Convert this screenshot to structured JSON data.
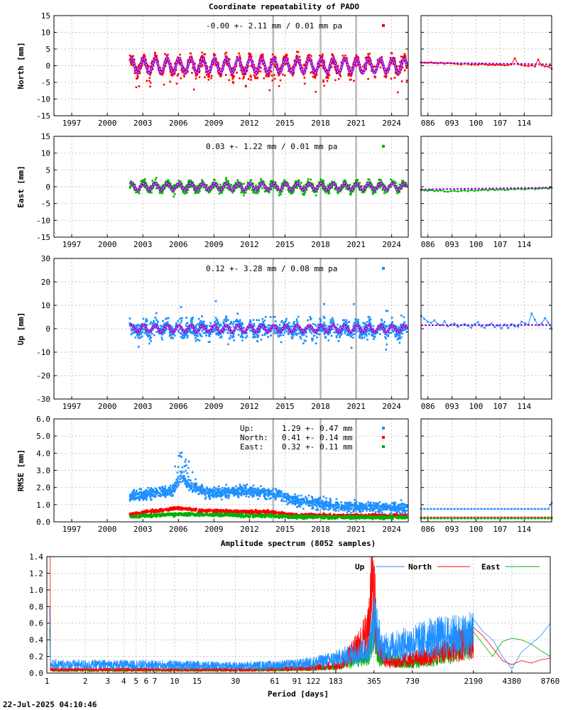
{
  "page": {
    "title": "Coordinate repeatability of PADO",
    "footer": "22-Jul-2025 04:10:46"
  },
  "colors": {
    "north": "#ff0000",
    "east": "#00b000",
    "up": "#1e90ff",
    "model": "#9400d3",
    "event": "#b8b8b8"
  },
  "chart_data": [
    {
      "type": "scatter",
      "name": "north",
      "ylabel": "North [mm]",
      "ylim": [
        -15,
        15
      ],
      "yticks": [
        -15,
        -10,
        -5,
        0,
        5,
        10,
        15
      ],
      "xlim": [
        1995.5,
        2025.4
      ],
      "xticks": [
        "1997",
        "2000",
        "2003",
        "2006",
        "2009",
        "2012",
        "2015",
        "2018",
        "2021",
        "2024"
      ],
      "xtick_values": [
        1997,
        2000,
        2003,
        2006,
        2009,
        2012,
        2015,
        2018,
        2021,
        2024
      ],
      "data_start": 2001.9,
      "data_end": 2025.3,
      "annotation": "-0.00 +- 2.11 mm /  0.01 mm pa",
      "seasonal_amplitude": 2.2,
      "scatter_std": 1.6,
      "color_key": "north",
      "event_lines": [
        2014.0,
        2018.0,
        2021.0
      ],
      "recent": {
        "xlim": [
          84,
          122
        ],
        "xticks": [
          "086",
          "093",
          "100",
          "107",
          "114"
        ],
        "xtick_values": [
          86,
          93,
          100,
          107,
          114
        ],
        "ylim": [
          -15,
          15
        ],
        "values": [
          1.0,
          0.9,
          0.9,
          1.0,
          0.8,
          0.7,
          0.9,
          0.6,
          0.8,
          0.7,
          0.6,
          0.5,
          0.4,
          0.6,
          0.5,
          0.3,
          0.4,
          0.3,
          0.5,
          0.4,
          0.2,
          0.3,
          0.2,
          0.3,
          0.2,
          0.1,
          0.2,
          0.4,
          2.2,
          0.5,
          0.2,
          0.0,
          -0.1,
          0.1,
          -0.2,
          1.8,
          0.1,
          -0.2,
          -0.3,
          -0.9
        ],
        "model": [
          0.9,
          0.4
        ]
      }
    },
    {
      "type": "scatter",
      "name": "east",
      "ylabel": "East [mm]",
      "ylim": [
        -15,
        15
      ],
      "yticks": [
        -15,
        -10,
        -5,
        0,
        5,
        10,
        15
      ],
      "xlim": [
        1995.5,
        2025.4
      ],
      "xticks": [
        "1997",
        "2000",
        "2003",
        "2006",
        "2009",
        "2012",
        "2015",
        "2018",
        "2021",
        "2024"
      ],
      "xtick_values": [
        1997,
        2000,
        2003,
        2006,
        2009,
        2012,
        2015,
        2018,
        2021,
        2024
      ],
      "data_start": 2001.9,
      "data_end": 2025.3,
      "annotation": " 0.03 +- 1.22 mm /  0.01 mm pa",
      "seasonal_amplitude": 1.0,
      "scatter_std": 1.1,
      "color_key": "east",
      "event_lines": [
        2014.0,
        2018.0,
        2021.0
      ],
      "recent": {
        "xlim": [
          84,
          122
        ],
        "xticks": [
          "086",
          "093",
          "100",
          "107",
          "114"
        ],
        "xtick_values": [
          86,
          93,
          100,
          107,
          114
        ],
        "ylim": [
          -15,
          15
        ],
        "values": [
          -1.0,
          -1.1,
          -1.2,
          -1.0,
          -1.3,
          -1.2,
          -1.1,
          -1.4,
          -1.5,
          -1.3,
          -1.2,
          -1.4,
          -1.2,
          -1.1,
          -1.3,
          -1.0,
          -1.2,
          -1.1,
          -1.0,
          -0.9,
          -1.1,
          -0.8,
          -1.0,
          -0.9,
          -0.8,
          -1.0,
          -0.9,
          -0.7,
          -0.8,
          -0.6,
          -0.7,
          -0.8,
          -0.6,
          -0.5,
          -0.7,
          -0.6,
          -0.5,
          -0.4,
          -0.6,
          -0.3
        ],
        "model": [
          -0.8,
          -0.3
        ]
      }
    },
    {
      "type": "scatter",
      "name": "up",
      "ylabel": "Up [mm]",
      "ylim": [
        -30,
        30
      ],
      "yticks": [
        -30,
        -20,
        -10,
        0,
        10,
        20,
        30
      ],
      "xlim": [
        1995.5,
        2025.4
      ],
      "xticks": [
        "1997",
        "2000",
        "2003",
        "2006",
        "2009",
        "2012",
        "2015",
        "2018",
        "2021",
        "2024"
      ],
      "xtick_values": [
        1997,
        2000,
        2003,
        2006,
        2009,
        2012,
        2015,
        2018,
        2021,
        2024
      ],
      "data_start": 2001.9,
      "data_end": 2025.3,
      "annotation": " 0.12 +- 3.28 mm /  0.08 mm pa",
      "seasonal_amplitude": 1.5,
      "scatter_std": 3.3,
      "color_key": "up",
      "event_lines": [
        2014.0,
        2018.0,
        2021.0
      ],
      "recent": {
        "xlim": [
          84,
          122
        ],
        "xticks": [
          "086",
          "093",
          "100",
          "107",
          "114"
        ],
        "xtick_values": [
          86,
          93,
          100,
          107,
          114
        ],
        "ylim": [
          -30,
          30
        ],
        "values": [
          5.5,
          4.2,
          3.0,
          2.5,
          3.6,
          2.0,
          1.5,
          3.2,
          1.0,
          1.8,
          2.2,
          0.8,
          1.5,
          2.0,
          1.2,
          0.5,
          1.9,
          2.8,
          1.0,
          0.4,
          1.6,
          2.2,
          0.7,
          1.4,
          0.2,
          1.8,
          0.3,
          2.0,
          1.0,
          0.9,
          3.0,
          2.4,
          1.7,
          6.5,
          3.8,
          1.5,
          2.2,
          4.5,
          2.6,
          0.0
        ],
        "model": [
          1.5,
          1.6
        ]
      }
    },
    {
      "type": "scatter",
      "name": "rmse",
      "ylabel": "RMSE [mm]",
      "ylim": [
        0,
        6
      ],
      "yticks": [
        "0.0",
        "1.0",
        "2.0",
        "3.0",
        "4.0",
        "5.0",
        "6.0"
      ],
      "ytick_values": [
        0,
        1,
        2,
        3,
        4,
        5,
        6
      ],
      "xlim": [
        1995.5,
        2025.4
      ],
      "xticks": [
        "1997",
        "2000",
        "2003",
        "2006",
        "2009",
        "2012",
        "2015",
        "2018",
        "2021",
        "2024"
      ],
      "xtick_values": [
        1997,
        2000,
        2003,
        2006,
        2009,
        2012,
        2015,
        2018,
        2021,
        2024
      ],
      "data_start": 2001.9,
      "data_end": 2025.3,
      "event_lines": [
        2014.0,
        2018.0,
        2021.0
      ],
      "legend": [
        {
          "label": "Up:",
          "value": "1.29 +- 0.47 mm",
          "color_key": "up"
        },
        {
          "label": "North:",
          "value": "0.41 +- 0.14 mm",
          "color_key": "north"
        },
        {
          "label": "East:",
          "value": "0.32 +- 0.11 mm",
          "color_key": "east"
        }
      ],
      "levels": {
        "up": [
          [
            2001.9,
            1.5
          ],
          [
            2005.5,
            1.8
          ],
          [
            2006.2,
            2.6
          ],
          [
            2007.0,
            2.1
          ],
          [
            2008.5,
            1.7
          ],
          [
            2012.0,
            1.8
          ],
          [
            2014.5,
            1.6
          ],
          [
            2016.0,
            1.2
          ],
          [
            2018.0,
            1.1
          ],
          [
            2019.5,
            0.9
          ],
          [
            2025.3,
            0.8
          ]
        ],
        "north": [
          [
            2001.9,
            0.45
          ],
          [
            2006.0,
            0.8
          ],
          [
            2008.0,
            0.65
          ],
          [
            2014.0,
            0.55
          ],
          [
            2016.0,
            0.4
          ],
          [
            2025.3,
            0.35
          ]
        ],
        "east": [
          [
            2001.9,
            0.3
          ],
          [
            2006.0,
            0.45
          ],
          [
            2014.0,
            0.35
          ],
          [
            2016.0,
            0.28
          ],
          [
            2025.3,
            0.25
          ]
        ]
      },
      "recent": {
        "xlim": [
          84,
          122
        ],
        "xticks": [
          "086",
          "093",
          "100",
          "107",
          "114"
        ],
        "xtick_values": [
          86,
          93,
          100,
          107,
          114
        ],
        "ylim": [
          0,
          6
        ],
        "up": 0.75,
        "north": 0.25,
        "east": 0.2,
        "up_last": 1.1
      }
    },
    {
      "type": "line",
      "name": "spectrum",
      "title": "Amplitude spectrum (8052 samples)",
      "xlabel": "Period [days]",
      "xscale": "log",
      "xlim": [
        1,
        8760
      ],
      "xticks": [
        "1",
        "2",
        "3",
        "4",
        "5",
        "6",
        "7",
        "10",
        "15",
        "30",
        "61",
        "91",
        "122",
        "183",
        "365",
        "730",
        "2190",
        "4380",
        "8760"
      ],
      "xtick_values": [
        1,
        2,
        3,
        4,
        5,
        6,
        7,
        10,
        15,
        30,
        61,
        91,
        122,
        183,
        365,
        730,
        2190,
        4380,
        8760
      ],
      "ylim": [
        0,
        1.4
      ],
      "yticks": [
        "0.0",
        "0.2",
        "0.4",
        "0.6",
        "0.8",
        "1.0",
        "1.2",
        "1.4"
      ],
      "ytick_values": [
        0,
        0.2,
        0.4,
        0.6,
        0.8,
        1.0,
        1.2,
        1.4
      ],
      "legend": [
        "Up",
        "North",
        "East"
      ],
      "series": [
        {
          "name": "Up",
          "color_key": "up",
          "x": [
            2190,
            2600,
            3100,
            3700,
            4380,
            5200,
            6200,
            7400,
            8760
          ],
          "y": [
            0.65,
            0.5,
            0.4,
            0.2,
            0.05,
            0.25,
            0.35,
            0.45,
            0.6
          ],
          "base": [
            [
              1,
              0.12
            ],
            [
              30,
              0.1
            ],
            [
              100,
              0.13
            ],
            [
              180,
              0.2
            ],
            [
              330,
              0.35
            ],
            [
              365,
              0.75
            ],
            [
              420,
              0.35
            ],
            [
              600,
              0.4
            ],
            [
              1000,
              0.5
            ],
            [
              2190,
              0.55
            ]
          ]
        },
        {
          "name": "North",
          "color_key": "north",
          "x": [
            2190,
            2600,
            3100,
            3700,
            4380,
            5200,
            6200,
            7400,
            8760
          ],
          "y": [
            0.55,
            0.45,
            0.3,
            0.15,
            0.1,
            0.15,
            0.12,
            0.16,
            0.18
          ],
          "base": [
            [
              1,
              0.05
            ],
            [
              30,
              0.05
            ],
            [
              100,
              0.07
            ],
            [
              200,
              0.12
            ],
            [
              330,
              0.6
            ],
            [
              350,
              1.25
            ],
            [
              365,
              1.3
            ],
            [
              380,
              0.5
            ],
            [
              450,
              0.15
            ],
            [
              1000,
              0.25
            ],
            [
              2190,
              0.5
            ]
          ]
        },
        {
          "name": "East",
          "color_key": "east",
          "x": [
            2190,
            2600,
            3100,
            3700,
            4380,
            5200,
            6200,
            7400,
            8760
          ],
          "y": [
            0.5,
            0.35,
            0.2,
            0.38,
            0.42,
            0.4,
            0.35,
            0.27,
            0.2
          ],
          "base": [
            [
              1,
              0.04
            ],
            [
              30,
              0.04
            ],
            [
              100,
              0.06
            ],
            [
              200,
              0.1
            ],
            [
              330,
              0.25
            ],
            [
              365,
              0.65
            ],
            [
              400,
              0.2
            ],
            [
              700,
              0.15
            ],
            [
              1200,
              0.25
            ],
            [
              2190,
              0.45
            ]
          ]
        }
      ]
    }
  ]
}
